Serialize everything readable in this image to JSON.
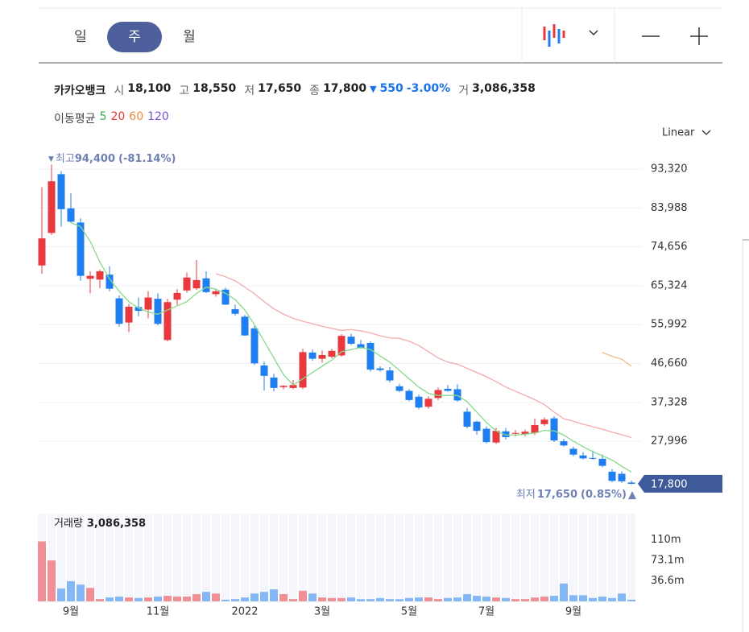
{
  "toolbar": {
    "tabs": [
      "일",
      "주",
      "월"
    ],
    "scale": "Linear"
  },
  "quote": {
    "name": "카카오뱅크",
    "fields": [
      {
        "label": "시",
        "value": "18,100"
      },
      {
        "label": "고",
        "value": "18,550"
      },
      {
        "label": "저",
        "value": "17,650"
      },
      {
        "label": "종",
        "value": "17,800"
      }
    ],
    "change_arrow": "▼",
    "change": "550",
    "change_pct": "-3.00%",
    "volume_label": "거",
    "volume": "3,086,358"
  },
  "chart_data": [
    {
      "type": "candlestick",
      "ma_label": "이동평균",
      "ma_periods": [
        {
          "label": "5",
          "color": "#43a84a"
        },
        {
          "label": "20",
          "color": "#e53935"
        },
        {
          "label": "60",
          "color": "#ef8a3a"
        },
        {
          "label": "120",
          "color": "#7b4fd6"
        }
      ],
      "up_color": "#e8393e",
      "down_color": "#1f7fee",
      "categories": [
        null,
        null,
        null,
        "9월",
        null,
        null,
        null,
        null,
        null,
        null,
        null,
        null,
        "11월",
        null,
        null,
        null,
        null,
        null,
        null,
        null,
        null,
        "2022",
        null,
        null,
        null,
        null,
        null,
        null,
        null,
        "3월",
        null,
        null,
        null,
        null,
        null,
        null,
        null,
        null,
        "5월",
        null,
        null,
        null,
        null,
        null,
        null,
        null,
        "7월",
        null,
        null,
        null,
        null,
        null,
        null,
        null,
        null,
        "9월",
        null,
        null,
        null,
        null,
        null,
        null
      ],
      "open": [
        70200,
        78000,
        92100,
        83900,
        80500,
        67000,
        66800,
        68000,
        62300,
        56500,
        60200,
        59600,
        62200,
        52300,
        62000,
        64200,
        64700,
        67100,
        63300,
        64400,
        59700,
        57900,
        55100,
        46200,
        43300,
        41000,
        40800,
        40900,
        49300,
        47800,
        48300,
        48600,
        53100,
        51300,
        51600,
        45500,
        45000,
        41200,
        40100,
        38700,
        36300,
        38400,
        40600,
        40500,
        35100,
        32700,
        31000,
        27700,
        30400,
        29800,
        29700,
        30000,
        32100,
        33500,
        28000,
        26200,
        24600,
        24000,
        23800,
        20700,
        20200,
        18100
      ],
      "high": [
        89000,
        94400,
        92800,
        87500,
        81500,
        68800,
        69200,
        70000,
        63000,
        61000,
        62500,
        64000,
        63500,
        62200,
        64500,
        68500,
        71500,
        68800,
        64500,
        64900,
        60800,
        58300,
        55700,
        47100,
        44200,
        41500,
        42700,
        50200,
        50000,
        49800,
        50200,
        53700,
        53800,
        52300,
        52000,
        46000,
        45800,
        41800,
        40500,
        39200,
        38800,
        40900,
        41500,
        41700,
        36000,
        33000,
        31600,
        31200,
        31200,
        30700,
        30800,
        33500,
        33700,
        34000,
        28600,
        26700,
        25400,
        25800,
        24800,
        21300,
        20800,
        18550
      ],
      "low": [
        68200,
        77500,
        79500,
        80400,
        66500,
        63500,
        64700,
        64000,
        55500,
        54200,
        58000,
        57500,
        55800,
        52000,
        60700,
        63700,
        64300,
        63600,
        62700,
        60700,
        58200,
        53300,
        46300,
        40200,
        40000,
        40500,
        40500,
        40500,
        47300,
        46900,
        47900,
        48300,
        51100,
        50200,
        44700,
        44700,
        42100,
        39800,
        37600,
        35700,
        35800,
        37900,
        39900,
        37500,
        31100,
        29600,
        27500,
        27400,
        28400,
        29200,
        29200,
        29500,
        31700,
        27800,
        26700,
        24400,
        23600,
        23600,
        21800,
        18200,
        18000,
        17650
      ],
      "close": [
        76700,
        90400,
        83700,
        80700,
        67700,
        67700,
        68800,
        64600,
        56200,
        60300,
        59300,
        62500,
        56200,
        61400,
        63600,
        67300,
        66700,
        63800,
        64000,
        60800,
        58600,
        53400,
        46700,
        43700,
        40800,
        41300,
        41500,
        49400,
        47800,
        48700,
        49700,
        53300,
        51400,
        50400,
        45200,
        45100,
        42600,
        40100,
        37900,
        36100,
        38200,
        40300,
        40100,
        37800,
        31500,
        30500,
        27800,
        30500,
        29000,
        30000,
        30300,
        31900,
        33200,
        28200,
        27000,
        24800,
        23900,
        23800,
        22100,
        18500,
        18400,
        17800
      ],
      "series": [
        {
          "color": "#86d98a",
          "values": [
            null,
            null,
            null,
            80500,
            79500,
            76000,
            71000,
            67000,
            64000,
            61500,
            60000,
            59000,
            58500,
            59500,
            60500,
            61500,
            63500,
            65000,
            64500,
            63500,
            62000,
            59500,
            56000,
            52000,
            48000,
            44000,
            41500,
            43000,
            44500,
            46000,
            47500,
            49500,
            50000,
            50500,
            50000,
            48500,
            47000,
            45000,
            43000,
            41000,
            39500,
            39000,
            39000,
            39000,
            37500,
            35000,
            32500,
            30500,
            29500,
            29500,
            29700,
            30000,
            30600,
            30500,
            29500,
            28000,
            26700,
            25500,
            24500,
            23500,
            22000,
            20600
          ]
        },
        {
          "color": "#f5a9a9",
          "values": [
            null,
            null,
            null,
            null,
            null,
            null,
            null,
            null,
            null,
            null,
            null,
            null,
            null,
            null,
            null,
            null,
            null,
            null,
            68200,
            67500,
            66500,
            65000,
            63400,
            61500,
            59800,
            58500,
            57500,
            56800,
            56200,
            55600,
            55100,
            54600,
            54800,
            54500,
            54000,
            53300,
            52800,
            52700,
            52000,
            51000,
            49500,
            48000,
            47000,
            46500,
            45500,
            44500,
            43500,
            42300,
            41000,
            40000,
            39000,
            38000,
            36800,
            35000,
            33400,
            32800,
            32100,
            31500,
            30900,
            30200,
            29600,
            28900
          ]
        },
        {
          "color": "#f7bb85",
          "values": [
            null,
            null,
            null,
            null,
            null,
            null,
            null,
            null,
            null,
            null,
            null,
            null,
            null,
            null,
            null,
            null,
            null,
            null,
            null,
            null,
            null,
            null,
            null,
            null,
            null,
            null,
            null,
            null,
            null,
            null,
            null,
            null,
            null,
            null,
            null,
            null,
            null,
            null,
            null,
            null,
            null,
            null,
            null,
            null,
            null,
            null,
            null,
            null,
            null,
            null,
            null,
            null,
            null,
            null,
            null,
            null,
            null,
            null,
            49300,
            48400,
            47700,
            46000
          ]
        }
      ],
      "ylim": [
        15000,
        97000
      ],
      "yticks": [
        {
          "value": 27996,
          "label": "27,996"
        },
        {
          "value": 37328,
          "label": "37,328"
        },
        {
          "value": 46660,
          "label": "46,660"
        },
        {
          "value": 55992,
          "label": "55,992"
        },
        {
          "value": 65324,
          "label": "65,324"
        },
        {
          "value": 74656,
          "label": "74,656"
        },
        {
          "value": 83988,
          "label": "83,988"
        },
        {
          "value": 93320,
          "label": "93,320"
        }
      ],
      "grid": true,
      "last_price": {
        "value": 17800,
        "label": "17,800",
        "color": "#3f5a9b"
      },
      "high_marker": {
        "symbol": "▼",
        "label": "최고",
        "value": "94,400",
        "change": "(-81.14%)"
      },
      "low_marker": {
        "label": "최저",
        "value": "17,650",
        "change": "(0.85%)",
        "symbol": "▲"
      }
    },
    {
      "type": "bar",
      "title": "거래량",
      "title_value": "3,086,358",
      "up_color": "#f08f95",
      "down_color": "#84b7f5",
      "values": [
        107,
        73,
        23,
        36,
        30,
        24,
        4,
        7,
        8.6,
        7,
        6,
        7,
        8.6,
        10,
        8.6,
        8.6,
        13,
        17,
        14,
        3,
        4,
        7,
        14,
        17,
        21.5,
        13,
        4,
        19,
        14,
        7,
        6,
        6,
        7,
        4,
        4,
        6,
        4,
        4,
        6,
        7,
        7,
        4,
        6,
        7,
        13,
        10,
        8.6,
        7,
        6,
        4,
        4,
        7,
        8.6,
        10,
        32,
        11,
        11,
        6,
        8.6,
        6,
        14,
        3.09
      ],
      "ylim": [
        0,
        145
      ],
      "yticks": [
        {
          "value": 36.6,
          "label": "36.6m"
        },
        {
          "value": 73.1,
          "label": "73.1m"
        },
        {
          "value": 110,
          "label": "110m"
        }
      ]
    }
  ]
}
